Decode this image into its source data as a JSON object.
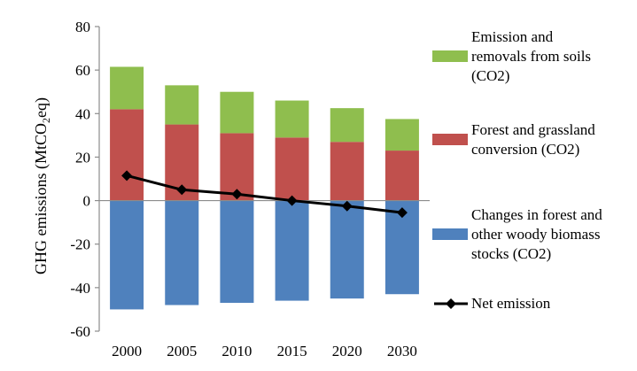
{
  "chart_data": {
    "type": "bar",
    "stacked": true,
    "categories": [
      "2000",
      "2005",
      "2010",
      "2015",
      "2020",
      "2030"
    ],
    "series": [
      {
        "name": "Emission and removals from soils (CO2)",
        "kind": "bar",
        "color": "#8fbe4e",
        "values": [
          19.5,
          18,
          19,
          17,
          15.5,
          14.5
        ]
      },
      {
        "name": "Forest and grassland conversion (CO2)",
        "kind": "bar",
        "color": "#c0504d",
        "values": [
          42,
          35,
          31,
          29,
          27,
          23
        ]
      },
      {
        "name": "Changes in forest and other woody biomass stocks (CO2)",
        "kind": "bar",
        "color": "#4f81bd",
        "values": [
          -50,
          -48,
          -47,
          -46,
          -45,
          -43
        ]
      },
      {
        "name": "Net emission",
        "kind": "line",
        "color": "#000000",
        "values": [
          11.5,
          5,
          3,
          0,
          -2.5,
          -5.5
        ]
      }
    ],
    "ylabel_prefix": "GHG emissions (MtCO",
    "ylabel_sub": "2",
    "ylabel_suffix": "eq)",
    "ylim": [
      -60,
      80
    ],
    "yticks": [
      "80",
      "60",
      "40",
      "20",
      "0",
      "-20",
      "-40",
      "-60"
    ],
    "grid": false,
    "legend_position": "right",
    "legend": [
      {
        "series": 0,
        "lines": [
          "Emission and",
          "removals from soils",
          "(CO2)"
        ]
      },
      {
        "series": 1,
        "lines": [
          "Forest and grassland",
          "conversion (CO2)"
        ]
      },
      {
        "series": 2,
        "lines": [
          "Changes in forest and",
          "other woody biomass",
          "stocks (CO2)"
        ]
      },
      {
        "series": 3,
        "lines": [
          "Net emission"
        ]
      }
    ]
  }
}
